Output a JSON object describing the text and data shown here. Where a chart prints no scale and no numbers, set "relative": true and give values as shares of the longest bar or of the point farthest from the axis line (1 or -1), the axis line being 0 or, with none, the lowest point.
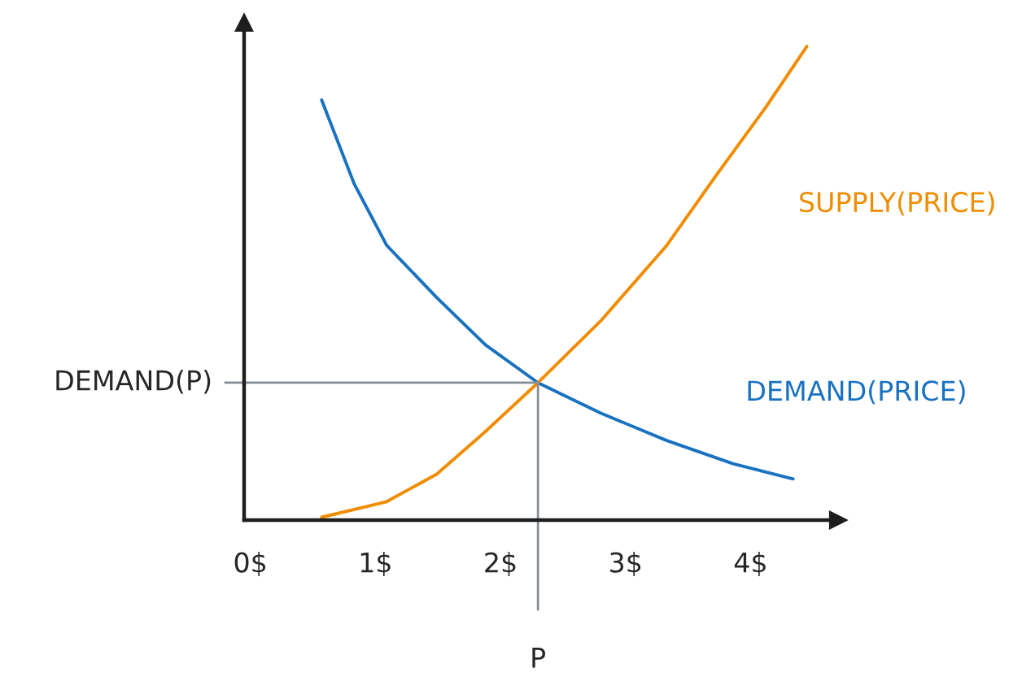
{
  "chart_data": {
    "type": "line",
    "relative": true,
    "xlim": [
      -0.05,
      4.7
    ],
    "xticks": [
      {
        "value": 0,
        "label": "0$"
      },
      {
        "value": 1,
        "label": "1$"
      },
      {
        "value": 2,
        "label": "2$"
      },
      {
        "value": 3,
        "label": "3$"
      },
      {
        "value": 4,
        "label": "4$"
      }
    ],
    "series": [
      {
        "name": "DEMAND(PRICE)",
        "color": "#1971c2",
        "x": [
          0.57,
          0.83,
          1.09,
          1.49,
          1.88,
          2.3,
          2.8,
          3.33,
          3.86,
          4.34
        ],
        "values": [
          0.887,
          0.71,
          0.58,
          0.47,
          0.37,
          0.29,
          0.226,
          0.168,
          0.119,
          0.087
        ]
      },
      {
        "name": "SUPPLY(PRICE)",
        "color": "#f08c00",
        "x": [
          0.57,
          1.09,
          1.49,
          1.88,
          2.3,
          2.8,
          3.33,
          3.72,
          4.12,
          4.45
        ],
        "values": [
          0.006,
          0.039,
          0.097,
          0.187,
          0.29,
          0.42,
          0.58,
          0.726,
          0.871,
          1.0
        ]
      }
    ],
    "ref_lines": [
      {
        "axis": "x",
        "value": 2.3,
        "label": "P",
        "color": "#868e96"
      },
      {
        "axis": "y",
        "value": 0.29,
        "label": "DEMAND(P)",
        "color": "#868e96"
      }
    ],
    "grid": false,
    "legend": false,
    "marker": "none",
    "line_style": "solid"
  }
}
